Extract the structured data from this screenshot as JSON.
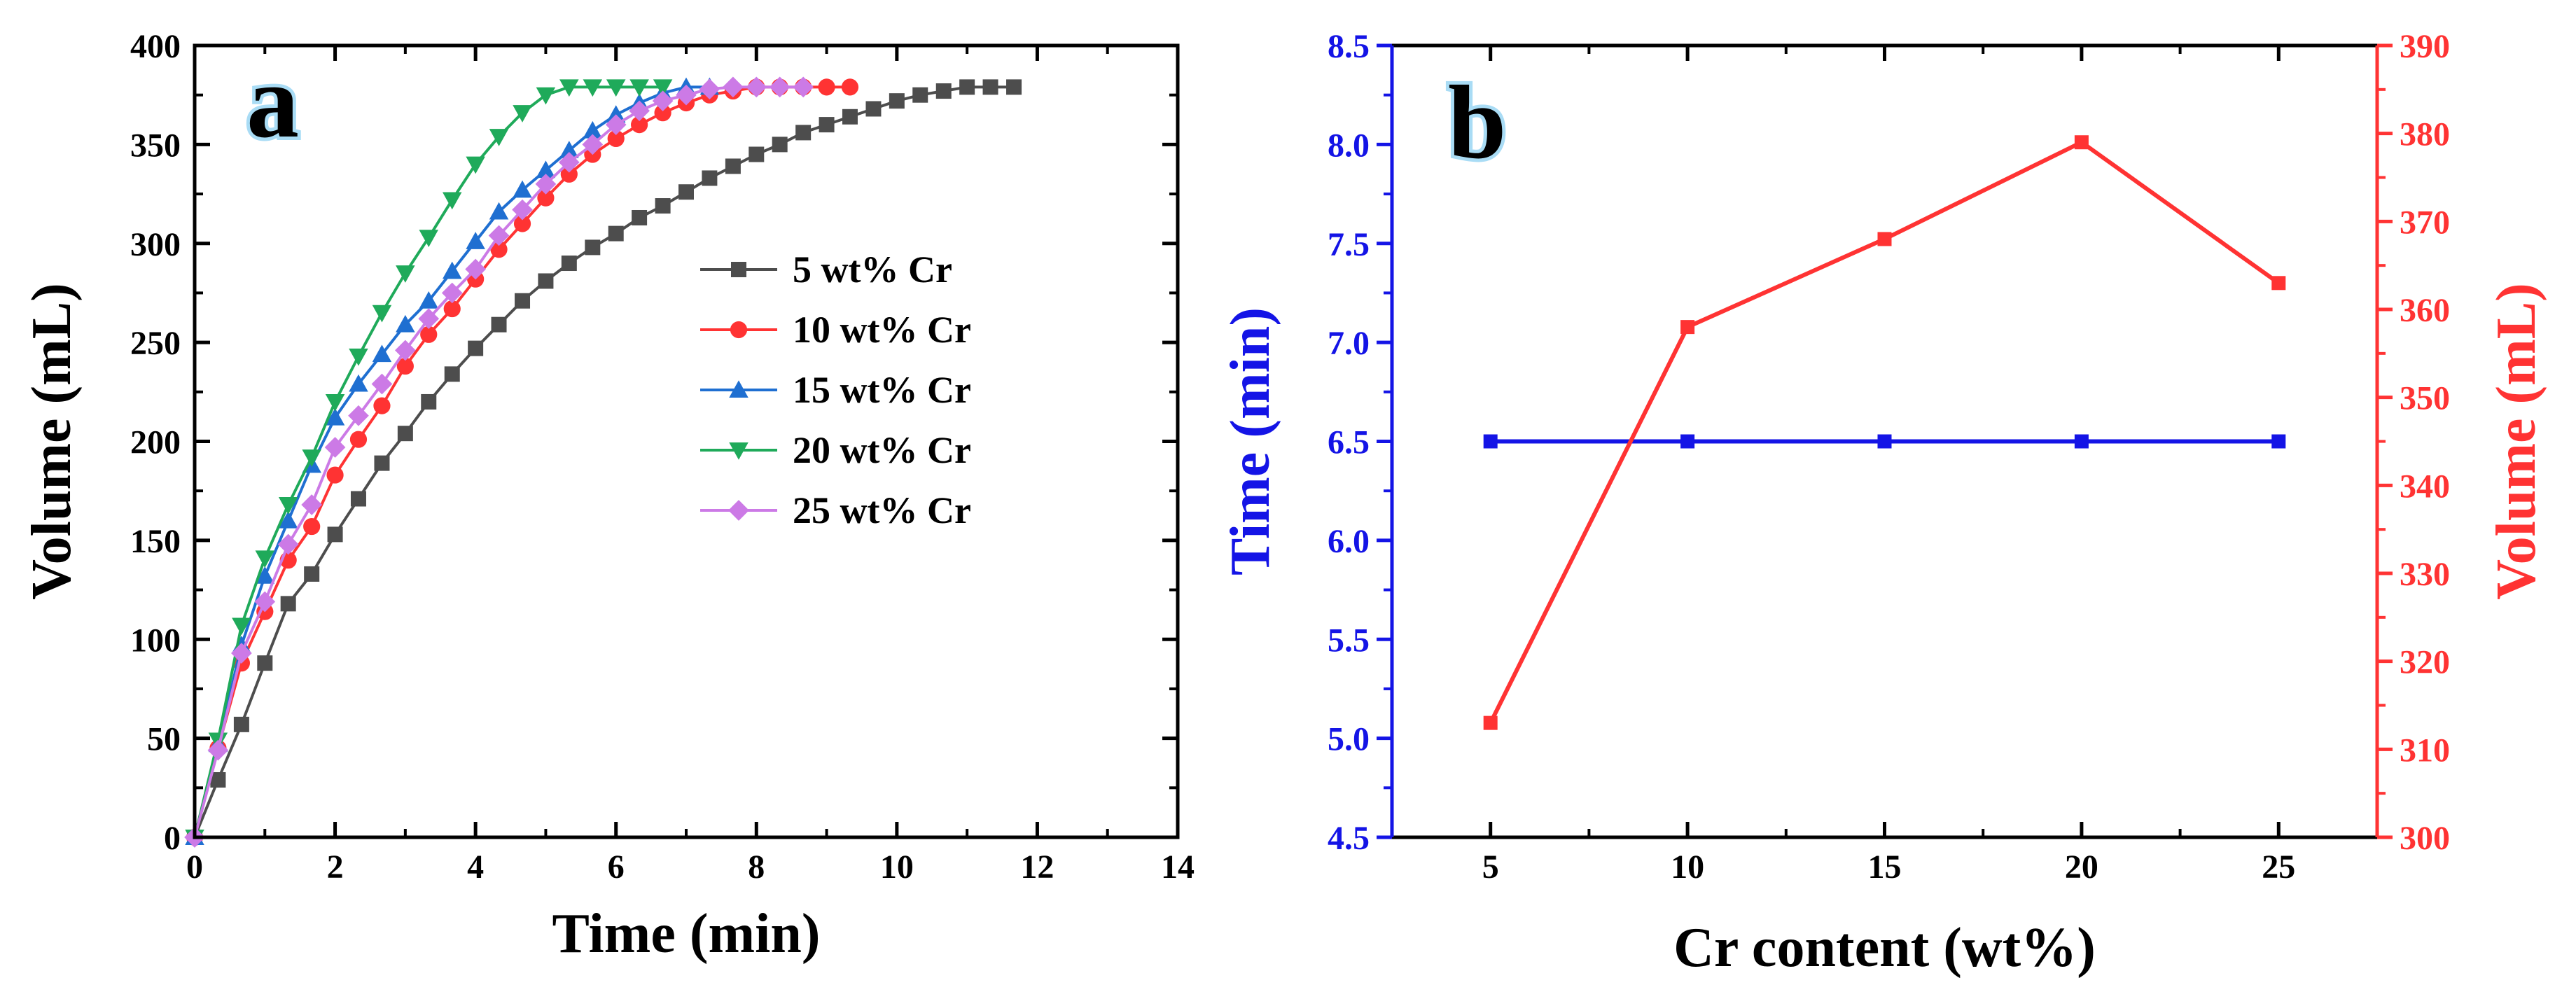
{
  "chart_data": [
    {
      "panel": "a",
      "type": "line",
      "xlabel": "Time (min)",
      "ylabel": "Volume (mL)",
      "xlim": [
        0,
        14
      ],
      "ylim": [
        0,
        400
      ],
      "xticks": [
        0,
        2,
        4,
        6,
        8,
        10,
        12,
        14
      ],
      "yticks": [
        0,
        50,
        100,
        150,
        200,
        250,
        300,
        350,
        400
      ],
      "legend_position": "center-right",
      "series": [
        {
          "name": "5 wt% Cr",
          "color": "#4d4d4d",
          "marker": "square",
          "x": [
            0,
            0.333,
            0.667,
            1,
            1.333,
            1.667,
            2,
            2.333,
            2.667,
            3,
            3.333,
            3.667,
            4,
            4.333,
            4.667,
            5,
            5.333,
            5.667,
            6,
            6.333,
            6.667,
            7,
            7.333,
            7.667,
            8,
            8.333,
            8.667,
            9,
            9.333,
            9.667,
            10,
            10.333,
            10.667,
            11,
            11.333,
            11.667
          ],
          "y": [
            0,
            29,
            57,
            88,
            118,
            133,
            153,
            171,
            189,
            204,
            220,
            234,
            247,
            259,
            271,
            281,
            290,
            298,
            305,
            313,
            319,
            326,
            333,
            339,
            345,
            350,
            356,
            360,
            364,
            368,
            372,
            375,
            377,
            379,
            379,
            379
          ]
        },
        {
          "name": "10 wt% Cr",
          "color": "#ff3333",
          "marker": "circle",
          "x": [
            0,
            0.333,
            0.667,
            1,
            1.333,
            1.667,
            2,
            2.333,
            2.667,
            3,
            3.333,
            3.667,
            4,
            4.333,
            4.667,
            5,
            5.333,
            5.667,
            6,
            6.333,
            6.667,
            7,
            7.333,
            7.667,
            8,
            8.333,
            8.667,
            9,
            9.333
          ],
          "y": [
            0,
            45,
            88,
            114,
            140,
            157,
            183,
            201,
            218,
            238,
            254,
            267,
            282,
            297,
            310,
            323,
            335,
            345,
            353,
            360,
            366,
            371,
            375,
            377,
            379,
            379,
            379,
            379,
            379
          ]
        },
        {
          "name": "15 wt% Cr",
          "color": "#1f6fd1",
          "marker": "triangle-up",
          "x": [
            0,
            0.333,
            0.667,
            1,
            1.333,
            1.667,
            2,
            2.333,
            2.667,
            3,
            3.333,
            3.667,
            4,
            4.333,
            4.667,
            5,
            5.333,
            5.667,
            6,
            6.333,
            6.667,
            7,
            7.333
          ],
          "y": [
            0,
            47,
            97,
            132,
            160,
            188,
            212,
            229,
            244,
            259,
            271,
            286,
            301,
            316,
            327,
            337,
            347,
            357,
            365,
            371,
            376,
            379,
            379
          ]
        },
        {
          "name": "20 wt% Cr",
          "color": "#1faa5a",
          "marker": "triangle-down",
          "x": [
            0,
            0.333,
            0.667,
            1,
            1.333,
            1.667,
            2,
            2.333,
            2.667,
            3,
            3.333,
            3.667,
            4,
            4.333,
            4.667,
            5,
            5.333,
            5.667,
            6,
            6.333,
            6.667
          ],
          "y": [
            0,
            49,
            107,
            141,
            168,
            192,
            220,
            243,
            265,
            285,
            303,
            322,
            340,
            354,
            366,
            375,
            379,
            379,
            379,
            379,
            379
          ]
        },
        {
          "name": "25 wt% Cr",
          "color": "#cc7ae6",
          "marker": "diamond",
          "x": [
            0,
            0.333,
            0.667,
            1,
            1.333,
            1.667,
            2,
            2.333,
            2.667,
            3,
            3.333,
            3.667,
            4,
            4.333,
            4.667,
            5,
            5.333,
            5.667,
            6,
            6.333,
            6.667,
            7,
            7.333,
            7.667,
            8,
            8.333,
            8.667
          ],
          "y": [
            0,
            44,
            93,
            119,
            148,
            168,
            197,
            213,
            229,
            246,
            262,
            275,
            287,
            304,
            317,
            330,
            341,
            350,
            360,
            367,
            372,
            375,
            378,
            379,
            379,
            379,
            379
          ]
        }
      ]
    },
    {
      "panel": "b",
      "type": "line",
      "xlabel": "Cr content (wt%)",
      "ylabel_left": "Time (min)",
      "ylabel_right": "Volume (mL)",
      "xlim": [
        2.5,
        27.5
      ],
      "xticks": [
        5,
        10,
        15,
        20,
        25
      ],
      "ylim_left": [
        4.5,
        8.5
      ],
      "yticks_left": [
        "4.5",
        "5.0",
        "5.5",
        "6.0",
        "6.5",
        "7.0",
        "7.5",
        "8.0",
        "8.5"
      ],
      "ylim_right": [
        300,
        390
      ],
      "yticks_right": [
        300,
        310,
        320,
        330,
        340,
        350,
        360,
        370,
        380,
        390
      ],
      "left_color": "#1414e6",
      "right_color": "#ff3333",
      "series": [
        {
          "name": "Time (min)",
          "axis": "left",
          "color": "#1414e6",
          "marker": "square",
          "x": [
            5,
            10,
            15,
            20,
            25
          ],
          "y": [
            6.5,
            6.5,
            6.5,
            6.5,
            6.5
          ]
        },
        {
          "name": "Volume (mL)",
          "axis": "right",
          "color": "#ff3333",
          "marker": "square",
          "x": [
            5,
            10,
            15,
            20,
            25
          ],
          "y": [
            313,
            358,
            368,
            379,
            363
          ]
        }
      ]
    }
  ]
}
